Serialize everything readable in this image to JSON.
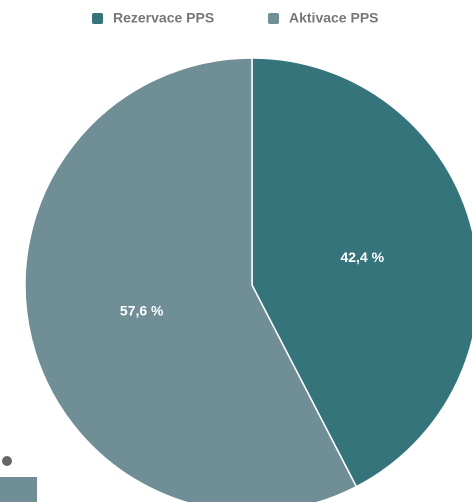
{
  "chart_data": {
    "type": "pie",
    "categories": [
      "Rezervace PPS",
      "Aktivace PPS"
    ],
    "values": [
      42.4,
      57.6
    ],
    "value_labels": [
      "42,4 %",
      "57,6 %"
    ],
    "colors": [
      "#35747a",
      "#6f8e96"
    ],
    "legend": "top"
  }
}
